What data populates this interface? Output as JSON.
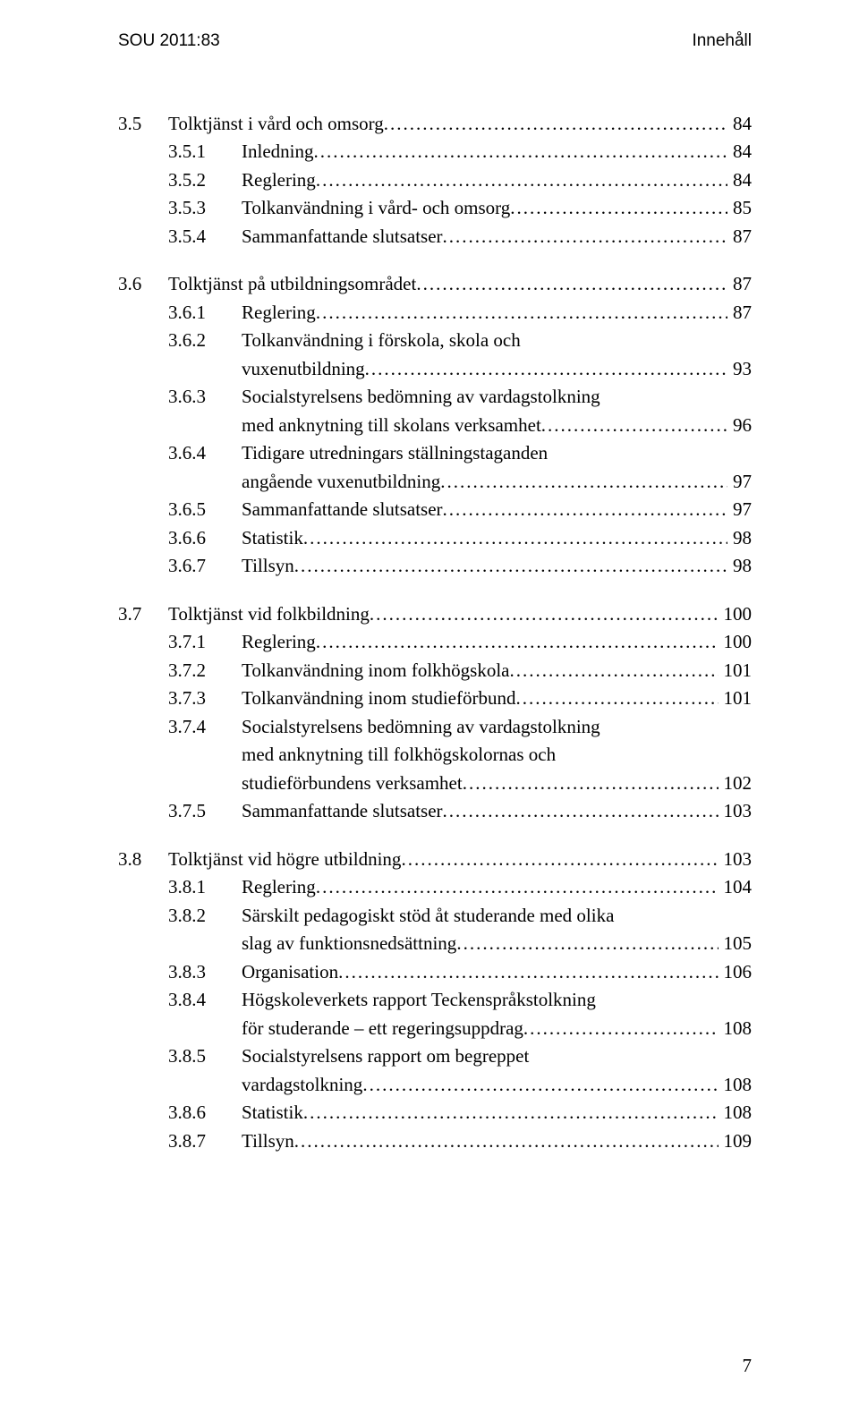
{
  "header": {
    "left": "SOU 2011:83",
    "right": "Innehåll"
  },
  "page_number": "7",
  "sections": [
    {
      "num": "3.5",
      "title": "Tolktjänst i vård och omsorg",
      "page": "84",
      "items": [
        {
          "num": "3.5.1",
          "title": "Inledning",
          "page": "84"
        },
        {
          "num": "3.5.2",
          "title": "Reglering",
          "page": "84"
        },
        {
          "num": "3.5.3",
          "title": "Tolkanvändning i vård- och omsorg",
          "page": "85"
        },
        {
          "num": "3.5.4",
          "title": "Sammanfattande slutsatser",
          "page": "87"
        }
      ]
    },
    {
      "num": "3.6",
      "title": "Tolktjänst på utbildningsområdet",
      "page": "87",
      "items": [
        {
          "num": "3.6.1",
          "title": "Reglering",
          "page": "87"
        },
        {
          "num": "3.6.2",
          "title": "Tolkanvändning i förskola, skola och",
          "cont": "vuxenutbildning",
          "page": "93"
        },
        {
          "num": "3.6.3",
          "title": "Socialstyrelsens bedömning av vardagstolkning",
          "cont": "med anknytning till skolans verksamhet",
          "page": "96"
        },
        {
          "num": "3.6.4",
          "title": "Tidigare utredningars ställningstaganden",
          "cont": "angående vuxenutbildning",
          "page": "97"
        },
        {
          "num": "3.6.5",
          "title": "Sammanfattande slutsatser",
          "page": "97"
        },
        {
          "num": "3.6.6",
          "title": "Statistik",
          "page": "98"
        },
        {
          "num": "3.6.7",
          "title": "Tillsyn",
          "page": "98"
        }
      ]
    },
    {
      "num": "3.7",
      "title": "Tolktjänst vid folkbildning",
      "page": "100",
      "items": [
        {
          "num": "3.7.1",
          "title": "Reglering",
          "page": "100"
        },
        {
          "num": "3.7.2",
          "title": "Tolkanvändning inom folkhögskola",
          "page": "101"
        },
        {
          "num": "3.7.3",
          "title": "Tolkanvändning inom studieförbund",
          "page": "101"
        },
        {
          "num": "3.7.4",
          "title": "Socialstyrelsens bedömning av vardagstolkning",
          "cont": "med anknytning till folkhögskolornas och",
          "cont2": "studieförbundens verksamhet",
          "page": "102"
        },
        {
          "num": "3.7.5",
          "title": "Sammanfattande slutsatser",
          "page": "103"
        }
      ]
    },
    {
      "num": "3.8",
      "title": "Tolktjänst vid högre utbildning",
      "page": "103",
      "items": [
        {
          "num": "3.8.1",
          "title": "Reglering",
          "page": "104"
        },
        {
          "num": "3.8.2",
          "title": "Särskilt pedagogiskt stöd åt studerande med olika",
          "cont": "slag av funktionsnedsättning",
          "page": "105"
        },
        {
          "num": "3.8.3",
          "title": "Organisation",
          "page": "106"
        },
        {
          "num": "3.8.4",
          "title": "Högskoleverkets rapport Teckenspråkstolkning",
          "cont": "för studerande – ett regeringsuppdrag",
          "page": "108"
        },
        {
          "num": "3.8.5",
          "title": "Socialstyrelsens rapport om begreppet",
          "cont": "vardagstolkning",
          "page": "108"
        },
        {
          "num": "3.8.6",
          "title": "Statistik",
          "page": "108"
        },
        {
          "num": "3.8.7",
          "title": "Tillsyn",
          "page": "109"
        }
      ]
    }
  ]
}
